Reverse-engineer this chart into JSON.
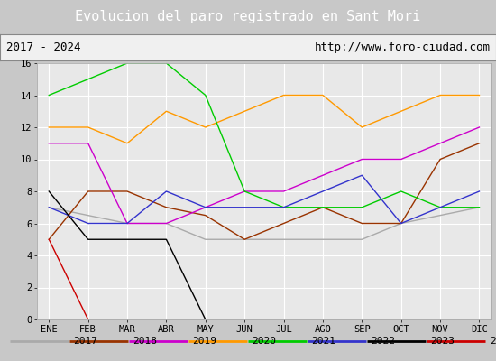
{
  "title": "Evolucion del paro registrado en Sant Mori",
  "subtitle_left": "2017 - 2024",
  "subtitle_right": "http://www.foro-ciudad.com",
  "months": [
    "ENE",
    "FEB",
    "MAR",
    "ABR",
    "MAY",
    "JUN",
    "JUL",
    "AGO",
    "SEP",
    "OCT",
    "NOV",
    "DIC"
  ],
  "series": {
    "2017": {
      "color": "#aaaaaa",
      "data": [
        7,
        6.5,
        6,
        6,
        5,
        5,
        5,
        5,
        5,
        6,
        6.5,
        7
      ]
    },
    "2018": {
      "color": "#993300",
      "data": [
        5,
        8,
        8,
        7,
        6.5,
        5,
        6,
        7,
        6,
        6,
        10,
        11
      ]
    },
    "2019": {
      "color": "#cc00cc",
      "data": [
        11,
        11,
        6,
        6,
        7,
        8,
        8,
        9,
        10,
        10,
        11,
        12
      ]
    },
    "2020": {
      "color": "#ff9900",
      "data": [
        12,
        12,
        11,
        13,
        12,
        13,
        14,
        14,
        12,
        13,
        14,
        14
      ]
    },
    "2021": {
      "color": "#00cc00",
      "data": [
        14,
        15,
        16,
        16,
        14,
        8,
        7,
        7,
        7,
        8,
        7,
        7
      ]
    },
    "2022": {
      "color": "#3333cc",
      "data": [
        7,
        6,
        6,
        8,
        7,
        7,
        7,
        8,
        9,
        6,
        7,
        8
      ]
    },
    "2023": {
      "color": "#000000",
      "data": [
        8,
        5,
        5,
        5,
        0,
        null,
        null,
        null,
        null,
        null,
        null,
        null
      ]
    },
    "2024": {
      "color": "#cc0000",
      "data": [
        5,
        0,
        null,
        null,
        null,
        null,
        null,
        null,
        null,
        null,
        null,
        null
      ]
    }
  },
  "ylim": [
    0,
    16
  ],
  "yticks": [
    0,
    2,
    4,
    6,
    8,
    10,
    12,
    14,
    16
  ],
  "title_bg_color": "#4f86c8",
  "title_color": "#ffffff",
  "header_bg_color": "#f0f0f0",
  "plot_bg_color": "#e8e8e8",
  "fig_bg_color": "#c8c8c8"
}
